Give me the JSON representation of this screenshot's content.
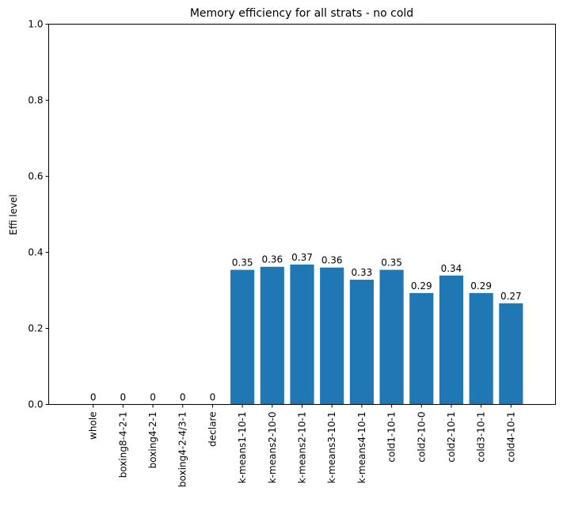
{
  "chart_data": {
    "type": "bar",
    "title": "Memory efficiency for all strats - no cold",
    "xlabel": "",
    "ylabel": "Effi level",
    "ylim": [
      0,
      1
    ],
    "yticks": [
      "0.0",
      "0.2",
      "0.4",
      "0.6",
      "0.8",
      "1.0"
    ],
    "grid": false,
    "legend": "none",
    "bar_color": "#1f77b4",
    "categories": [
      "whole",
      "boxing8-4-2-1",
      "boxing4-2-1",
      "boxing4-2-4/3-1",
      "declare",
      "k-means1-10-1",
      "k-means2-10-0",
      "k-means2-10-1",
      "k-means3-10-1",
      "k-means4-10-1",
      "cold1-10-1",
      "cold2-10-0",
      "cold2-10-1",
      "cold3-10-1",
      "cold4-10-1"
    ],
    "values": [
      0,
      0,
      0,
      0,
      0,
      0.354,
      0.362,
      0.368,
      0.36,
      0.328,
      0.354,
      0.293,
      0.339,
      0.293,
      0.266
    ],
    "data_labels": [
      "0",
      "0",
      "0",
      "0",
      "0",
      "0.35",
      "0.36",
      "0.37",
      "0.36",
      "0.33",
      "0.35",
      "0.29",
      "0.34",
      "0.29",
      "0.27"
    ]
  }
}
